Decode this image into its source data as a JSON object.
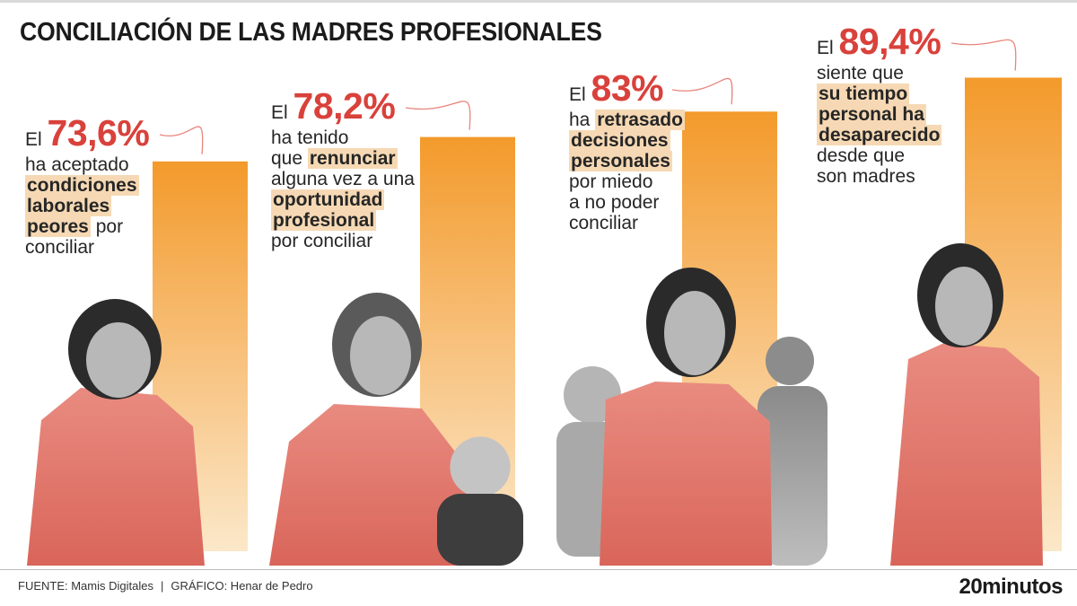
{
  "title": "CONCILIACIÓN DE LAS MADRES PROFESIONALES",
  "colors": {
    "accent": "#d9413b",
    "bar_top": "#f39a2b",
    "bar_bottom": "#fbe8c9",
    "highlight": "#f6d9b4",
    "photo_tint": "#e8796e"
  },
  "chart_data": {
    "type": "bar",
    "unit": "%",
    "ylim": [
      0,
      100
    ],
    "categories": [
      "ha aceptado condiciones laborales peores por conciliar",
      "ha tenido que renunciar alguna vez a una oportunidad profesional por conciliar",
      "ha retrasado decisiones personales por miedo a no poder conciliar",
      "siente que su tiempo personal ha desaparecido desde que son madres"
    ],
    "values": [
      73.6,
      78.2,
      83,
      89.4
    ],
    "labels": [
      "73,6%",
      "78,2%",
      "83%",
      "89,4%"
    ]
  },
  "annotations": [
    {
      "prefix": "El",
      "value": "73,6%",
      "lines": [
        [
          {
            "t": "ha aceptado",
            "b": false
          }
        ],
        [
          {
            "t": "condiciones",
            "b": true
          }
        ],
        [
          {
            "t": "laborales",
            "b": true
          }
        ],
        [
          {
            "t": "peores",
            "b": true
          },
          {
            "t": " por",
            "b": false
          }
        ],
        [
          {
            "t": "conciliar",
            "b": false
          }
        ]
      ]
    },
    {
      "prefix": "El",
      "value": "78,2%",
      "lines": [
        [
          {
            "t": "ha tenido",
            "b": false
          }
        ],
        [
          {
            "t": "que ",
            "b": false
          },
          {
            "t": "renunciar",
            "b": true
          }
        ],
        [
          {
            "t": "alguna vez a una",
            "b": false
          }
        ],
        [
          {
            "t": "oportunidad",
            "b": true
          }
        ],
        [
          {
            "t": "profesional",
            "b": true
          }
        ],
        [
          {
            "t": "por conciliar",
            "b": false
          }
        ]
      ]
    },
    {
      "prefix": "El",
      "value": "83%",
      "lines": [
        [
          {
            "t": "ha ",
            "b": false
          },
          {
            "t": "retrasado",
            "b": true
          }
        ],
        [
          {
            "t": "decisiones",
            "b": true
          }
        ],
        [
          {
            "t": "personales",
            "b": true
          }
        ],
        [
          {
            "t": "por miedo",
            "b": false
          }
        ],
        [
          {
            "t": "a no poder",
            "b": false
          }
        ],
        [
          {
            "t": "conciliar",
            "b": false
          }
        ]
      ]
    },
    {
      "prefix": "El",
      "value": "89,4%",
      "lines": [
        [
          {
            "t": "siente que",
            "b": false
          }
        ],
        [
          {
            "t": "su tiempo",
            "b": true
          }
        ],
        [
          {
            "t": "personal ha",
            "b": true
          }
        ],
        [
          {
            "t": "desaparecido",
            "b": true
          }
        ],
        [
          {
            "t": "desde que",
            "b": false
          }
        ],
        [
          {
            "t": "son madres",
            "b": false
          }
        ]
      ]
    }
  ],
  "footer": {
    "source": "FUENTE: Mamis Digitales",
    "separator": "|",
    "credit": "GRÁFICO: Henar de Pedro"
  },
  "brand": "20minutos"
}
